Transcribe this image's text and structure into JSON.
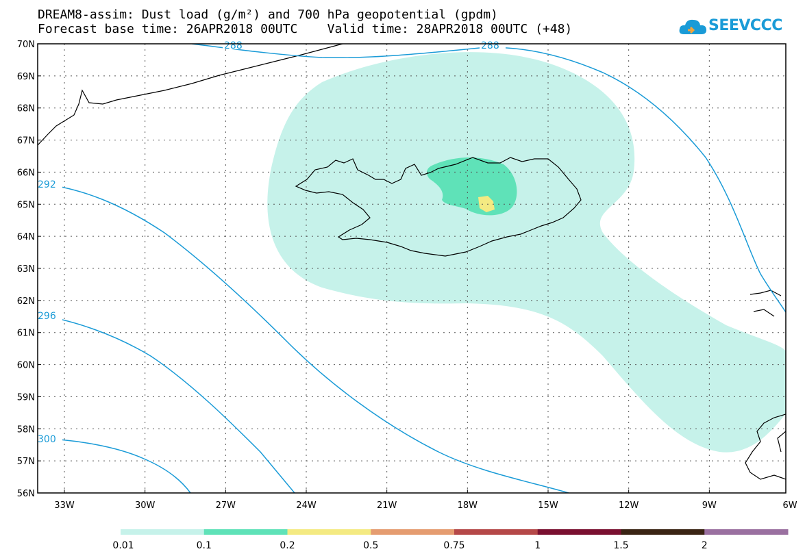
{
  "title_line1": "DREAM8-assim: Dust load (g/m²) and 700 hPa geopotential (gpdm)",
  "title_line2": "Forecast base time: 26APR2018 00UTC    Valid time: 28APR2018 00UTC (+48)",
  "logo_text": "SEEVCCC",
  "lat_labels": [
    "70N",
    "69N",
    "68N",
    "67N",
    "66N",
    "65N",
    "64N",
    "63N",
    "62N",
    "61N",
    "60N",
    "59N",
    "58N",
    "57N",
    "56N"
  ],
  "lon_labels": [
    "33W",
    "30W",
    "27W",
    "24W",
    "21W",
    "18W",
    "15W",
    "12W",
    "9W",
    "6W"
  ],
  "contour_labels": [
    "288",
    "288",
    "292",
    "296",
    "300"
  ],
  "colorbar": {
    "labels": [
      "0.01",
      "0.1",
      "0.2",
      "0.5",
      "0.75",
      "1",
      "1.5",
      "2"
    ],
    "colors": [
      "#c6f2ea",
      "#5fe2b8",
      "#f4ea82",
      "#e59c70",
      "#b54848",
      "#7a1030",
      "#3a2414",
      "#9a70a0"
    ]
  },
  "colors": {
    "contour": "#1a9bd7",
    "coast": "#000000"
  }
}
